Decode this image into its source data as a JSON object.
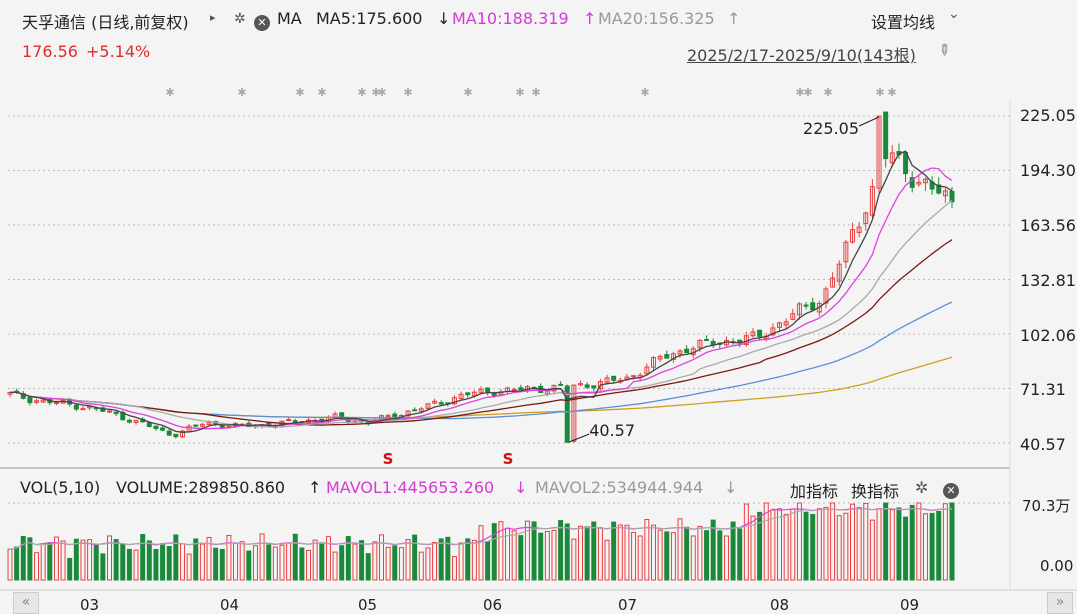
{
  "header": {
    "stock_title": "天孚通信 (日线,前复权)",
    "expand_arrow": "▸",
    "ma_label": "MA",
    "ma5": "MA5:175.600",
    "ma5_arrow": "↓",
    "ma10": "MA10:188.319",
    "ma10_arrow": "↑",
    "ma20": "MA20:156.325",
    "ma20_arrow": "↑",
    "settings_label": "设置均线",
    "settings_chevron": "⌄",
    "price": "176.56",
    "change": "+5.14%",
    "date_range": "2025/2/17-2025/9/10(143根)"
  },
  "price_axis": [
    "225.05",
    "194.30",
    "163.56",
    "132.81",
    "102.06",
    "71.31",
    "40.57"
  ],
  "annotations": {
    "high": "225.05",
    "low": "40.57",
    "s_marker": "S"
  },
  "volume_header": {
    "vol_label": "VOL(5,10)",
    "volume": "VOLUME:289850.860",
    "volume_arrow": "↑",
    "mavol1": "MAVOL1:445653.260",
    "mavol1_arrow": "↓",
    "mavol2": "MAVOL2:534944.944",
    "mavol2_arrow": "↓",
    "add_indicator": "加指标",
    "switch_indicator": "换指标"
  },
  "volume_axis": {
    "top": "70.3万",
    "bottom": "0.00"
  },
  "time_axis": [
    "03",
    "04",
    "05",
    "06",
    "07",
    "08",
    "09"
  ],
  "nav": {
    "prev": "«",
    "next": "»"
  },
  "colors": {
    "up": "#e84040",
    "down": "#1a8a3a",
    "ma5": "#444444",
    "ma10": "#e040e0",
    "ma20": "#aaaaaa",
    "ma30": "#7a1a10",
    "ma60": "#5b8fd8",
    "ma120": "#d0a020"
  },
  "chart_data": {
    "type": "candlestick",
    "price_range": [
      40.57,
      225.05
    ],
    "high_label": 225.05,
    "low_label": 40.57,
    "period": "2025/2/17-2025/9/10",
    "bars": 143,
    "key_closes": [
      68,
      64,
      62,
      58,
      52,
      45,
      52,
      50,
      51,
      53,
      55,
      52,
      57,
      62,
      68,
      70,
      71,
      72,
      74,
      77,
      88,
      95,
      98,
      100,
      112,
      122,
      160,
      204,
      188,
      176.56
    ],
    "volume_range": [
      0,
      703000
    ]
  }
}
